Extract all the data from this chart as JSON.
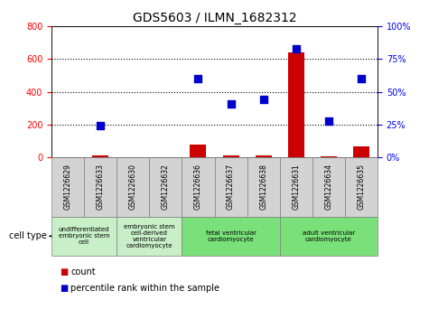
{
  "title": "GDS5603 / ILMN_1682312",
  "samples": [
    "GSM1226629",
    "GSM1226633",
    "GSM1226630",
    "GSM1226632",
    "GSM1226636",
    "GSM1226637",
    "GSM1226638",
    "GSM1226631",
    "GSM1226634",
    "GSM1226635"
  ],
  "counts": [
    0,
    10,
    0,
    0,
    80,
    10,
    10,
    640,
    5,
    70
  ],
  "percentiles": [
    null,
    24,
    null,
    null,
    60,
    41,
    44,
    83,
    28,
    60
  ],
  "cell_types": [
    {
      "label": "undifferentiated\nembryonic stem\ncell",
      "start": 0,
      "end": 2,
      "color": "#c8efc8"
    },
    {
      "label": "embryonic stem\ncell-derived\nventricular\ncardiomyocyte",
      "start": 2,
      "end": 4,
      "color": "#c8efc8"
    },
    {
      "label": "fetal ventricular\ncardiomyocyte",
      "start": 4,
      "end": 7,
      "color": "#7ae07a"
    },
    {
      "label": "adult ventricular\ncardiomyocyte",
      "start": 7,
      "end": 10,
      "color": "#7ae07a"
    }
  ],
  "ylim_left": [
    0,
    800
  ],
  "ylim_right": [
    0,
    100
  ],
  "yticks_left": [
    0,
    200,
    400,
    600,
    800
  ],
  "yticks_right": [
    0,
    25,
    50,
    75,
    100
  ],
  "ytick_labels_right": [
    "0%",
    "25%",
    "50%",
    "75%",
    "100%"
  ],
  "bar_color": "#cc0000",
  "dot_color": "#0000cc",
  "bg_color": "#ffffff",
  "bar_width": 0.5,
  "dot_size": 40,
  "count_label": "count",
  "percentile_label": "percentile rank within the sample",
  "cell_type_label": "cell type",
  "sample_col_color": "#d3d3d3",
  "title_fontsize": 10,
  "tick_fontsize": 7,
  "label_fontsize": 7
}
